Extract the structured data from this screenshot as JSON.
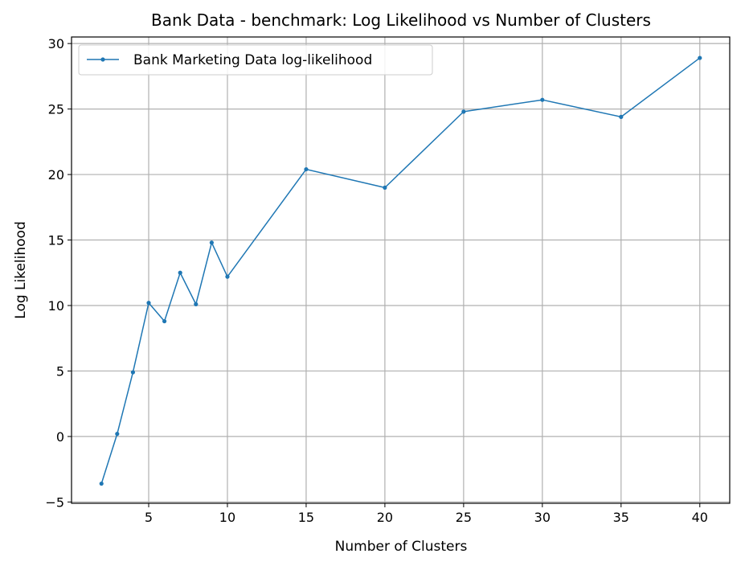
{
  "chart_data": {
    "type": "line",
    "title": "Bank Data - benchmark: Log Likelihood vs Number of Clusters",
    "xlabel": "Number of Clusters",
    "ylabel": "Log Likelihood",
    "xlim": [
      0.1,
      41.9
    ],
    "ylim": [
      -5.1,
      30.5
    ],
    "xticks": [
      5,
      10,
      15,
      20,
      25,
      30,
      35,
      40
    ],
    "yticks": [
      -5,
      0,
      5,
      10,
      15,
      20,
      25,
      30
    ],
    "grid": true,
    "legend_position": "top-left",
    "series": [
      {
        "name": "Bank Marketing Data log-likelihood",
        "color": "#1f77b4",
        "marker": "dot",
        "x": [
          2,
          3,
          4,
          5,
          6,
          7,
          8,
          9,
          10,
          15,
          20,
          25,
          30,
          35,
          40
        ],
        "y": [
          -3.6,
          0.2,
          4.9,
          10.2,
          8.8,
          12.5,
          10.1,
          14.8,
          12.2,
          20.4,
          19.0,
          24.8,
          25.7,
          24.4,
          28.9
        ]
      }
    ]
  }
}
